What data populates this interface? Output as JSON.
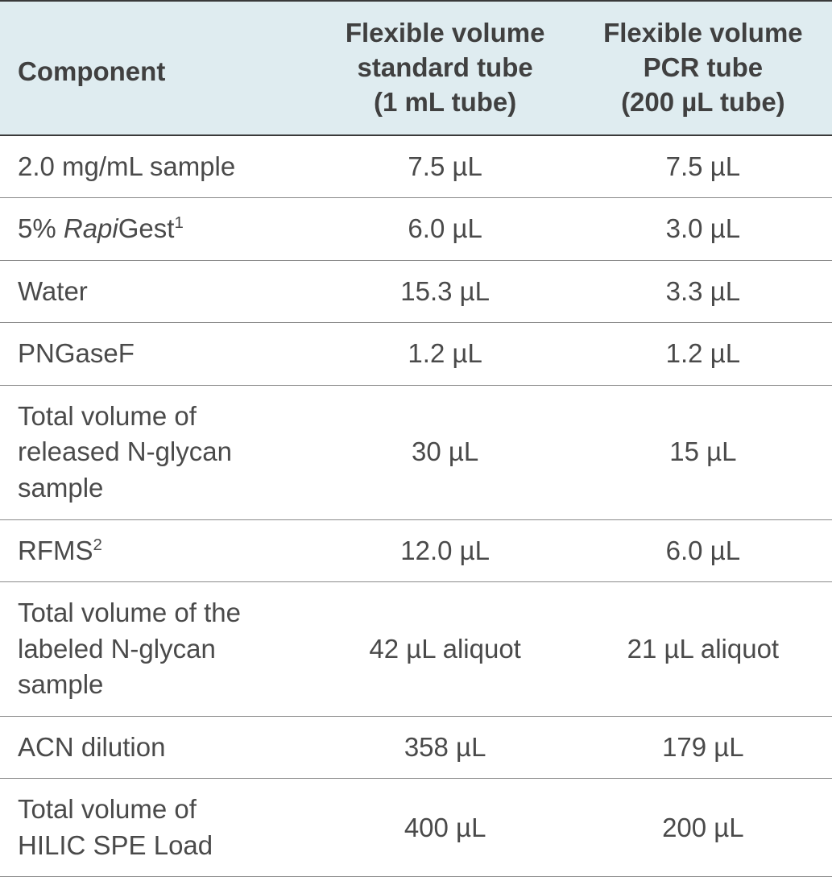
{
  "table": {
    "header_bg": "#dfecf0",
    "border_color": "#3a3a3a",
    "row_border_color": "#8a8a8a",
    "text_color": "#4a4a4a",
    "columns": [
      {
        "label": "Component",
        "align": "left"
      },
      {
        "line1": "Flexible volume",
        "line2": "standard tube",
        "line3": "(1 mL tube)",
        "align": "center"
      },
      {
        "line1": "Flexible volume",
        "line2": "PCR tube",
        "line3": "(200 µL tube)",
        "align": "center"
      }
    ],
    "rows": [
      {
        "c1_plain": "2.0 mg/mL sample",
        "c2": "7.5 µL",
        "c3": "7.5 µL"
      },
      {
        "c1_prefix": "5% ",
        "c1_italic": "Rapi",
        "c1_after": "Gest",
        "c1_sup": "1",
        "c2": "6.0 µL",
        "c3": "3.0 µL"
      },
      {
        "c1_plain": "Water",
        "c2": "15.3 µL",
        "c3": "3.3 µL"
      },
      {
        "c1_plain": "PNGaseF",
        "c2": "1.2 µL",
        "c3": "1.2 µL"
      },
      {
        "c1_line1": "Total volume of",
        "c1_line2": "released N-glycan",
        "c1_line3": "sample",
        "c2": "30 µL",
        "c3": "15 µL"
      },
      {
        "c1_after": "RFMS",
        "c1_sup": "2",
        "c2": "12.0 µL",
        "c3": "6.0 µL"
      },
      {
        "c1_line1": "Total volume of the",
        "c1_line2": "labeled N-glycan",
        "c1_line3": "sample",
        "c2": "42 µL aliquot",
        "c3": "21 µL aliquot"
      },
      {
        "c1_plain": "ACN dilution",
        "c2": "358 µL",
        "c3": "179 µL"
      },
      {
        "c1_line1": "Total volume of",
        "c1_line2": "HILIC SPE Load",
        "c2": "400 µL",
        "c3": "200 µL"
      }
    ]
  }
}
